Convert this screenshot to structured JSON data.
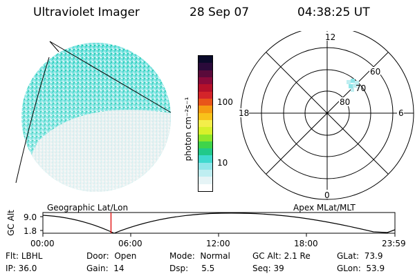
{
  "header": {
    "title": "Ultraviolet Imager",
    "date": "28 Sep 07",
    "time": "04:38:25 UT"
  },
  "colorbar": {
    "unit_label": "photon cm⁻²s⁻¹",
    "ticks": [
      "100",
      "10"
    ],
    "colors": [
      "#ffffff",
      "#e6f4f6",
      "#bfeef1",
      "#8fe6e9",
      "#3fd9cf",
      "#21c98a",
      "#3fd44a",
      "#8ee62a",
      "#d7f02a",
      "#f4ee4a",
      "#f8c21a",
      "#f59a12",
      "#e8541a",
      "#d4242a",
      "#b5102a",
      "#8a0a3a",
      "#5a0a3a",
      "#2a0a3a",
      "#0a0a2a"
    ]
  },
  "polar_plot": {
    "mlt_labels": [
      "12",
      "18",
      "6",
      "0"
    ],
    "mlat_labels": [
      "60",
      "70",
      "80"
    ]
  },
  "timeline": {
    "left_label": "Geographic Lat/Lon",
    "right_label": "Apex MLat/MLT",
    "y_axis_label": "GC Alt",
    "y_ticks": [
      "9.0",
      "1.8"
    ],
    "x_ticks": [
      "00:00",
      "06:00",
      "12:00",
      "18:00",
      "23:59"
    ],
    "marker_time": "04:38:25"
  },
  "info": {
    "flt_label": "Flt:",
    "flt_value": "LBHL",
    "ip_label": "IP:",
    "ip_value": "36.0",
    "door_label": "Door:",
    "door_value": "Open",
    "gain_label": "Gain:",
    "gain_value": "14",
    "mode_label": "Mode:",
    "mode_value": "Normal",
    "dsp_label": "Dsp:",
    "dsp_value": "5.5",
    "gcalt_label": "GC Alt:",
    "gcalt_value": "2.1 Re",
    "seq_label": "Seq:",
    "seq_value": "39",
    "glat_label": "GLat:",
    "glat_value": "73.9",
    "glon_label": "GLon:",
    "glon_value": "53.9"
  },
  "colors": {
    "marker": "#e00000",
    "aurora_cyan": "#3fd9cf",
    "aurora_light": "#bfeef1",
    "earth_grey": "#d8d8d8"
  }
}
